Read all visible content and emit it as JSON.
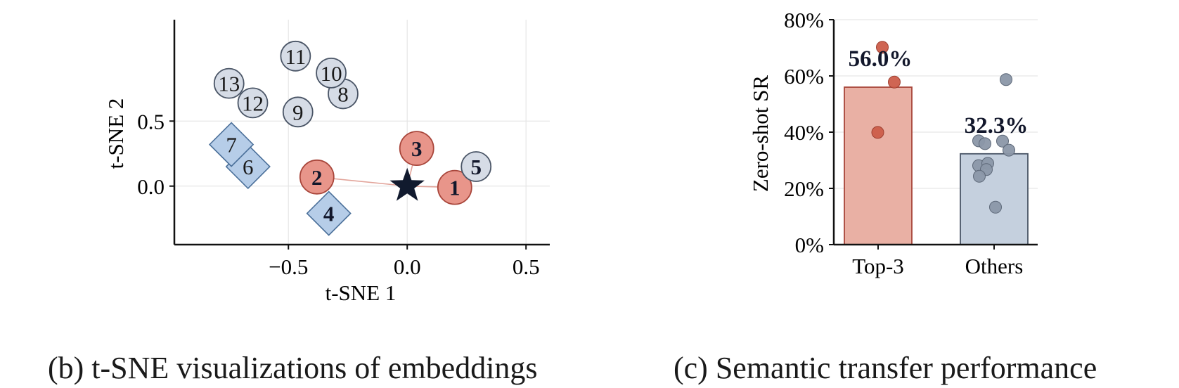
{
  "chart_data": [
    {
      "type": "scatter",
      "caption": "(b) t-SNE visualizations of embeddings",
      "xlabel": "t-SNE 1",
      "ylabel": "t-SNE 2",
      "xlim": [
        -0.98,
        0.6
      ],
      "ylim": [
        -0.45,
        1.28
      ],
      "xticks": [
        -0.5,
        0.0,
        0.5
      ],
      "xtick_labels": [
        "−0.5",
        "0.0",
        "0.5"
      ],
      "yticks": [
        0.0,
        0.5
      ],
      "ytick_labels": [
        "0.0",
        "0.5"
      ],
      "grid": true,
      "target": {
        "x": 0.0,
        "y": 0.0,
        "marker": "star"
      },
      "points": [
        {
          "label": "1",
          "x": 0.2,
          "y": -0.01,
          "group": "top3",
          "shape": "circle"
        },
        {
          "label": "2",
          "x": -0.38,
          "y": 0.07,
          "group": "top3",
          "shape": "circle"
        },
        {
          "label": "3",
          "x": 0.04,
          "y": 0.29,
          "group": "top3",
          "shape": "circle"
        },
        {
          "label": "4",
          "x": -0.33,
          "y": -0.21,
          "group": "diamond",
          "shape": "diamond"
        },
        {
          "label": "5",
          "x": 0.29,
          "y": 0.15,
          "group": "others",
          "shape": "circle"
        },
        {
          "label": "6",
          "x": -0.67,
          "y": 0.15,
          "group": "diamond",
          "shape": "diamond"
        },
        {
          "label": "7",
          "x": -0.74,
          "y": 0.32,
          "group": "diamond",
          "shape": "diamond"
        },
        {
          "label": "8",
          "x": -0.27,
          "y": 0.71,
          "group": "others",
          "shape": "circle"
        },
        {
          "label": "9",
          "x": -0.46,
          "y": 0.57,
          "group": "others",
          "shape": "circle"
        },
        {
          "label": "10",
          "x": -0.32,
          "y": 0.87,
          "group": "others",
          "shape": "circle"
        },
        {
          "label": "11",
          "x": -0.47,
          "y": 1.0,
          "group": "others",
          "shape": "circle"
        },
        {
          "label": "12",
          "x": -0.65,
          "y": 0.64,
          "group": "others",
          "shape": "circle"
        },
        {
          "label": "13",
          "x": -0.75,
          "y": 0.79,
          "group": "others",
          "shape": "circle"
        }
      ],
      "links": [
        {
          "from": "2",
          "to": "target"
        },
        {
          "from": "1",
          "to": "target"
        },
        {
          "from": "3",
          "to": "target"
        }
      ]
    },
    {
      "type": "bar",
      "caption": "(c) Semantic transfer performance",
      "ylabel": "Zero-shot SR",
      "categories": [
        "Top-3",
        "Others"
      ],
      "values": [
        56.0,
        32.3
      ],
      "value_labels": [
        "56.0%",
        "32.3%"
      ],
      "ylim": [
        0,
        80
      ],
      "yticks": [
        0,
        20,
        40,
        60,
        80
      ],
      "ytick_labels": [
        "0%",
        "20%",
        "40%",
        "60%",
        "80%"
      ],
      "grid": true,
      "points": [
        [
          70.2,
          57.8,
          39.9
        ],
        [
          58.7,
          36.9,
          35.9,
          36.8,
          33.6,
          28.1,
          28.9,
          26.7,
          24.3,
          13.3
        ]
      ]
    }
  ],
  "colors": {
    "top3_fill": "#e8958a",
    "top3_edge": "#a8453a",
    "top3_bar_fill": "#e9b0a4",
    "others_fill": "#d6dce6",
    "others_edge": "#4a5566",
    "diamond_fill": "#b6cde8",
    "diamond_edge": "#4a6f99",
    "bar_others_fill": "#c5d0de",
    "dot_top3": "#cc5d4a",
    "dot_others": "#8b97a8",
    "star": "#111a2e",
    "text_dark": "#12172b",
    "grid": "#e6e6e6"
  }
}
